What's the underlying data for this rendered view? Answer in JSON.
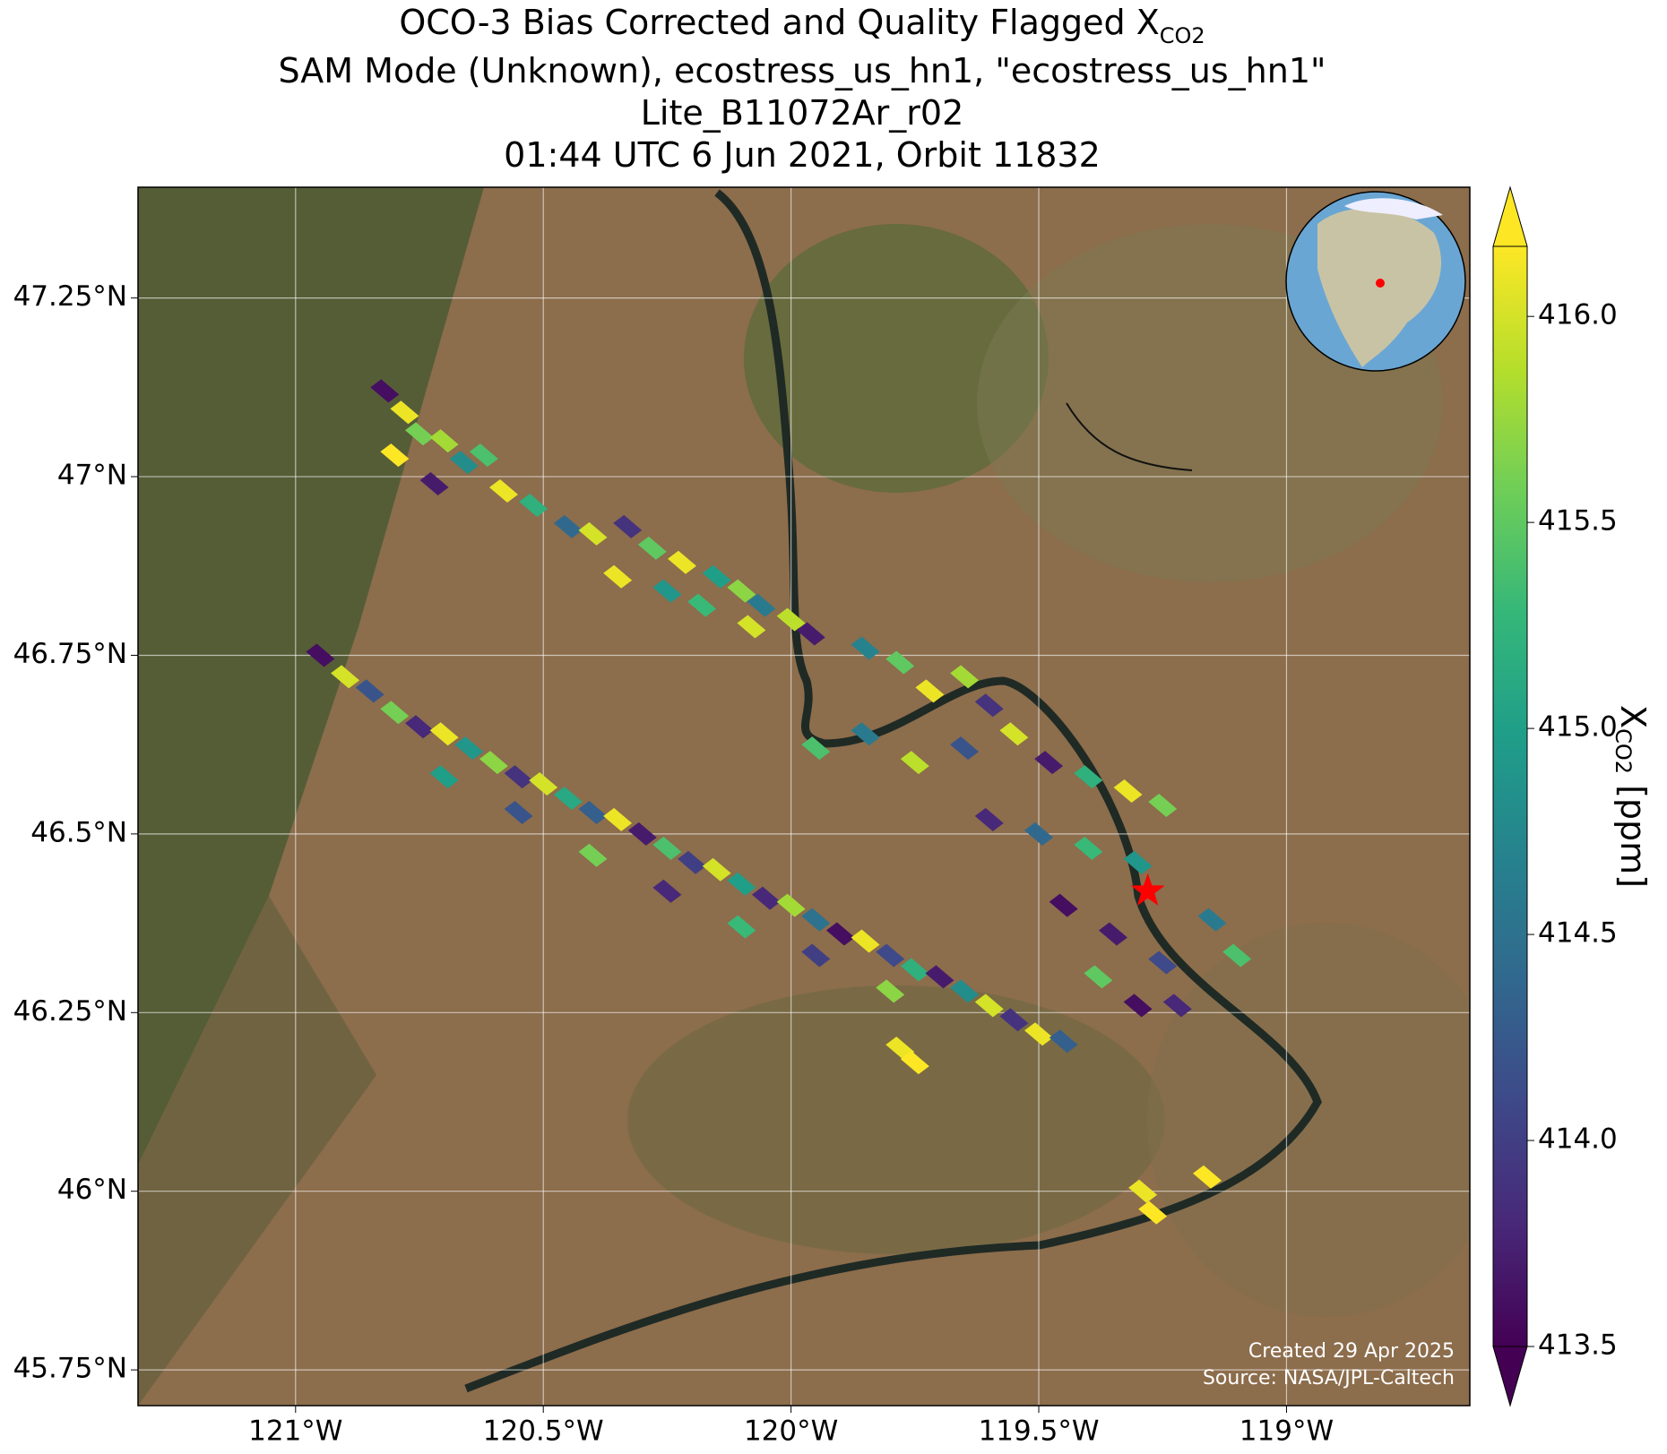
{
  "chart_data": {
    "type": "scatter",
    "title_parts": [
      "OCO-3 Bias Corrected and Quality Flagged X",
      "CO2"
    ],
    "subtitles": [
      "SAM Mode (Unknown), ecostress_us_hn1, \"ecostress_us_hn1\"",
      "Lite_B11072Ar_r02",
      "01:44 UTC 6 Jun 2021, Orbit 11832"
    ],
    "colorbar_label_parts": [
      "X",
      "CO2",
      " [ppm]"
    ],
    "footer": [
      "Created 29 Apr 2025",
      "Source: NASA/JPL-Caltech"
    ],
    "xlim": [
      -121.318,
      -118.63
    ],
    "ylim": [
      45.7,
      47.405
    ],
    "xticks": [
      {
        "value": -121,
        "label": "121°W"
      },
      {
        "value": -120.5,
        "label": "120.5°W"
      },
      {
        "value": -120,
        "label": "120°W"
      },
      {
        "value": -119.5,
        "label": "119.5°W"
      },
      {
        "value": -119,
        "label": "119°W"
      }
    ],
    "yticks": [
      {
        "value": 47.25,
        "label": "47.25°N"
      },
      {
        "value": 47,
        "label": "47°N"
      },
      {
        "value": 46.75,
        "label": "46.75°N"
      },
      {
        "value": 46.5,
        "label": "46.5°N"
      },
      {
        "value": 46.25,
        "label": "46.25°N"
      },
      {
        "value": 46,
        "label": "46°N"
      },
      {
        "value": 45.75,
        "label": "45.75°N"
      }
    ],
    "grid": true,
    "colormap": "viridis",
    "clim": [
      413.5,
      416.17
    ],
    "cticks": [
      {
        "value": 413.5,
        "label": "413.5"
      },
      {
        "value": 414,
        "label": "414.0"
      },
      {
        "value": 414.5,
        "label": "414.5"
      },
      {
        "value": 415,
        "label": "415.0"
      },
      {
        "value": 415.5,
        "label": "415.5"
      },
      {
        "value": 416,
        "label": "416.0"
      }
    ],
    "site": {
      "x": -119.28,
      "y": 46.42,
      "color": "#ff0000"
    },
    "x": [
      -120.82,
      -120.78,
      -120.75,
      -120.7,
      -120.66,
      -120.62,
      -120.8,
      -120.72,
      -120.58,
      -120.52,
      -120.45,
      -120.4,
      -120.33,
      -120.28,
      -120.22,
      -120.15,
      -120.1,
      -120.06,
      -120.0,
      -120.35,
      -120.25,
      -120.18,
      -120.08,
      -119.96,
      -119.85,
      -119.78,
      -120.95,
      -120.9,
      -120.85,
      -120.8,
      -120.75,
      -120.7,
      -120.65,
      -120.6,
      -120.55,
      -120.5,
      -120.45,
      -120.4,
      -120.35,
      -120.3,
      -120.25,
      -120.2,
      -120.15,
      -120.1,
      -120.05,
      -120.0,
      -119.95,
      -119.9,
      -119.85,
      -119.8,
      -119.75,
      -119.7,
      -119.65,
      -119.6,
      -119.55,
      -119.5,
      -119.45,
      -120.7,
      -120.55,
      -120.4,
      -120.25,
      -120.1,
      -119.95,
      -119.8,
      -119.95,
      -119.85,
      -119.75,
      -119.65,
      -119.55,
      -119.48,
      -119.4,
      -119.32,
      -119.25,
      -119.6,
      -119.5,
      -119.4,
      -119.3,
      -119.45,
      -119.35,
      -119.25,
      -119.38,
      -119.3,
      -119.22,
      -119.15,
      -119.1,
      -119.72,
      -119.65,
      -119.6,
      -119.78,
      -119.75,
      -119.29,
      -119.27,
      -119.16
    ],
    "y": [
      47.12,
      47.09,
      47.06,
      47.05,
      47.02,
      47.03,
      47.03,
      46.99,
      46.98,
      46.96,
      46.93,
      46.92,
      46.93,
      46.9,
      46.88,
      46.86,
      46.84,
      46.82,
      46.8,
      46.86,
      46.84,
      46.82,
      46.79,
      46.78,
      46.76,
      46.74,
      46.75,
      46.72,
      46.7,
      46.67,
      46.65,
      46.64,
      46.62,
      46.6,
      46.58,
      46.57,
      46.55,
      46.53,
      46.52,
      46.5,
      46.48,
      46.46,
      46.45,
      46.43,
      46.41,
      46.4,
      46.38,
      46.36,
      46.35,
      46.33,
      46.31,
      46.3,
      46.28,
      46.26,
      46.24,
      46.22,
      46.21,
      46.58,
      46.53,
      46.47,
      46.42,
      46.37,
      46.33,
      46.28,
      46.62,
      46.64,
      46.6,
      46.62,
      46.64,
      46.6,
      46.58,
      46.56,
      46.54,
      46.52,
      46.5,
      46.48,
      46.46,
      46.4,
      46.36,
      46.32,
      46.3,
      46.26,
      46.26,
      46.38,
      46.33,
      46.7,
      46.72,
      46.68,
      46.2,
      46.18,
      46.0,
      45.97,
      46.02
    ],
    "values": [
      413.6,
      416.1,
      415.6,
      415.8,
      414.8,
      415.4,
      416.2,
      413.7,
      416.1,
      415.2,
      414.4,
      416.0,
      413.9,
      415.5,
      416.1,
      415.0,
      415.7,
      414.6,
      415.9,
      416.1,
      414.9,
      415.3,
      416.0,
      413.7,
      414.7,
      415.5,
      413.6,
      416.0,
      414.2,
      415.6,
      413.8,
      416.1,
      414.9,
      415.7,
      413.9,
      416.0,
      415.1,
      414.3,
      416.1,
      413.7,
      415.4,
      414.0,
      416.0,
      415.0,
      413.8,
      415.8,
      414.5,
      413.6,
      416.1,
      414.1,
      415.2,
      413.7,
      414.8,
      416.0,
      413.9,
      416.1,
      414.3,
      415.0,
      414.2,
      415.6,
      413.8,
      415.3,
      414.0,
      415.7,
      415.4,
      414.6,
      415.9,
      414.2,
      416.0,
      413.7,
      415.2,
      416.1,
      415.6,
      413.8,
      414.4,
      415.3,
      414.9,
      413.6,
      413.7,
      414.1,
      415.5,
      413.6,
      413.8,
      414.6,
      415.4,
      416.1,
      415.8,
      413.9,
      416.1,
      416.2,
      416.1,
      416.2,
      416.2
    ]
  }
}
